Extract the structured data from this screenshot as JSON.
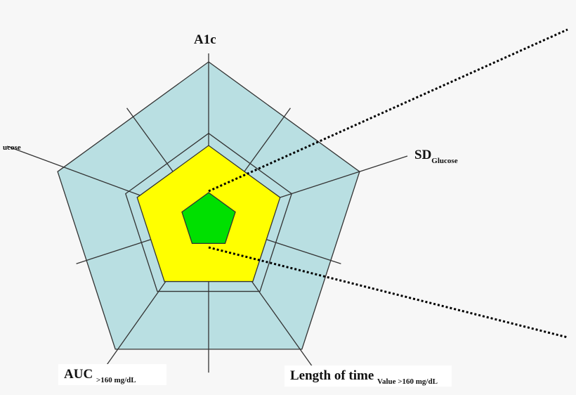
{
  "labels": {
    "top": "A1c",
    "right_main": "SD",
    "right_sub": "Glucose",
    "left_clipped": "ucose",
    "bottom_left_main": "AUC",
    "bottom_left_sub": ">160 mg/dL",
    "bottom_right_main": "Length of time",
    "bottom_right_sub": "Value >160 mg/dL"
  },
  "colors": {
    "background": "#f7f7f7",
    "grid_fill": "#b9dfe2",
    "middle_polygon": "#ffff00",
    "inner_polygon": "#00e000",
    "lines": "#333333"
  }
}
